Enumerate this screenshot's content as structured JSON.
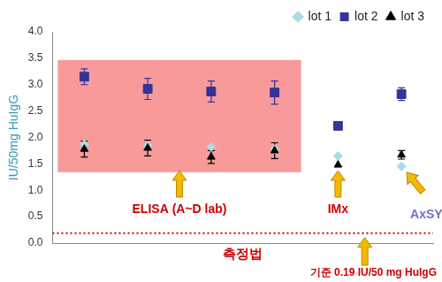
{
  "chart_data": {
    "type": "scatter",
    "categories": [
      null,
      null,
      null,
      null,
      null,
      null
    ],
    "y_label": "IU/50mg HuIgG",
    "x_label": "측정법",
    "ylim": [
      0,
      4
    ],
    "yticks": [
      {
        "value": 0,
        "label": "0.0"
      },
      {
        "value": 0.5,
        "label": "0.5"
      },
      {
        "value": 1,
        "label": "1.0"
      },
      {
        "value": 1.5,
        "label": "1.5"
      },
      {
        "value": 2,
        "label": "2.0"
      },
      {
        "value": 2.5,
        "label": "2.5"
      },
      {
        "value": 3,
        "label": "3.0"
      },
      {
        "value": 3.5,
        "label": "3.5"
      },
      {
        "value": 4,
        "label": "4.0"
      }
    ],
    "grid": false,
    "tick_labels": "y",
    "legend": "top-right",
    "series": [
      {
        "name": "lot 1",
        "color": "#a9dbe3",
        "marker": "diamond",
        "values": [
          1.87,
          1.85,
          1.82,
          1.78,
          1.65,
          1.45
        ]
      },
      {
        "name": "lot 2",
        "color": "#333399",
        "marker": "square",
        "values": [
          3.15,
          2.92,
          2.87,
          2.85,
          2.22,
          2.82
        ],
        "errors": [
          0.15,
          0.2,
          0.2,
          0.22,
          null,
          0.12
        ]
      },
      {
        "name": "lot 3",
        "color": "#000000",
        "marker": "triangle",
        "values": [
          1.78,
          1.8,
          1.63,
          1.75,
          1.48,
          1.67
        ],
        "errors": [
          0.15,
          0.15,
          0.12,
          0.15,
          null,
          0.08
        ]
      }
    ],
    "annotations": [
      {
        "text": "ELISA (A~D lab)",
        "color": "#cc0000"
      },
      {
        "text": "IMx",
        "color": "#cc0000"
      },
      {
        "text": "AxSYM",
        "color": "#7070cc"
      }
    ],
    "reference": {
      "value": 0.19,
      "label": "기준 0.19 IU/50 mg HuIgG",
      "color": "#cc0000",
      "line_style": "dotted"
    }
  }
}
